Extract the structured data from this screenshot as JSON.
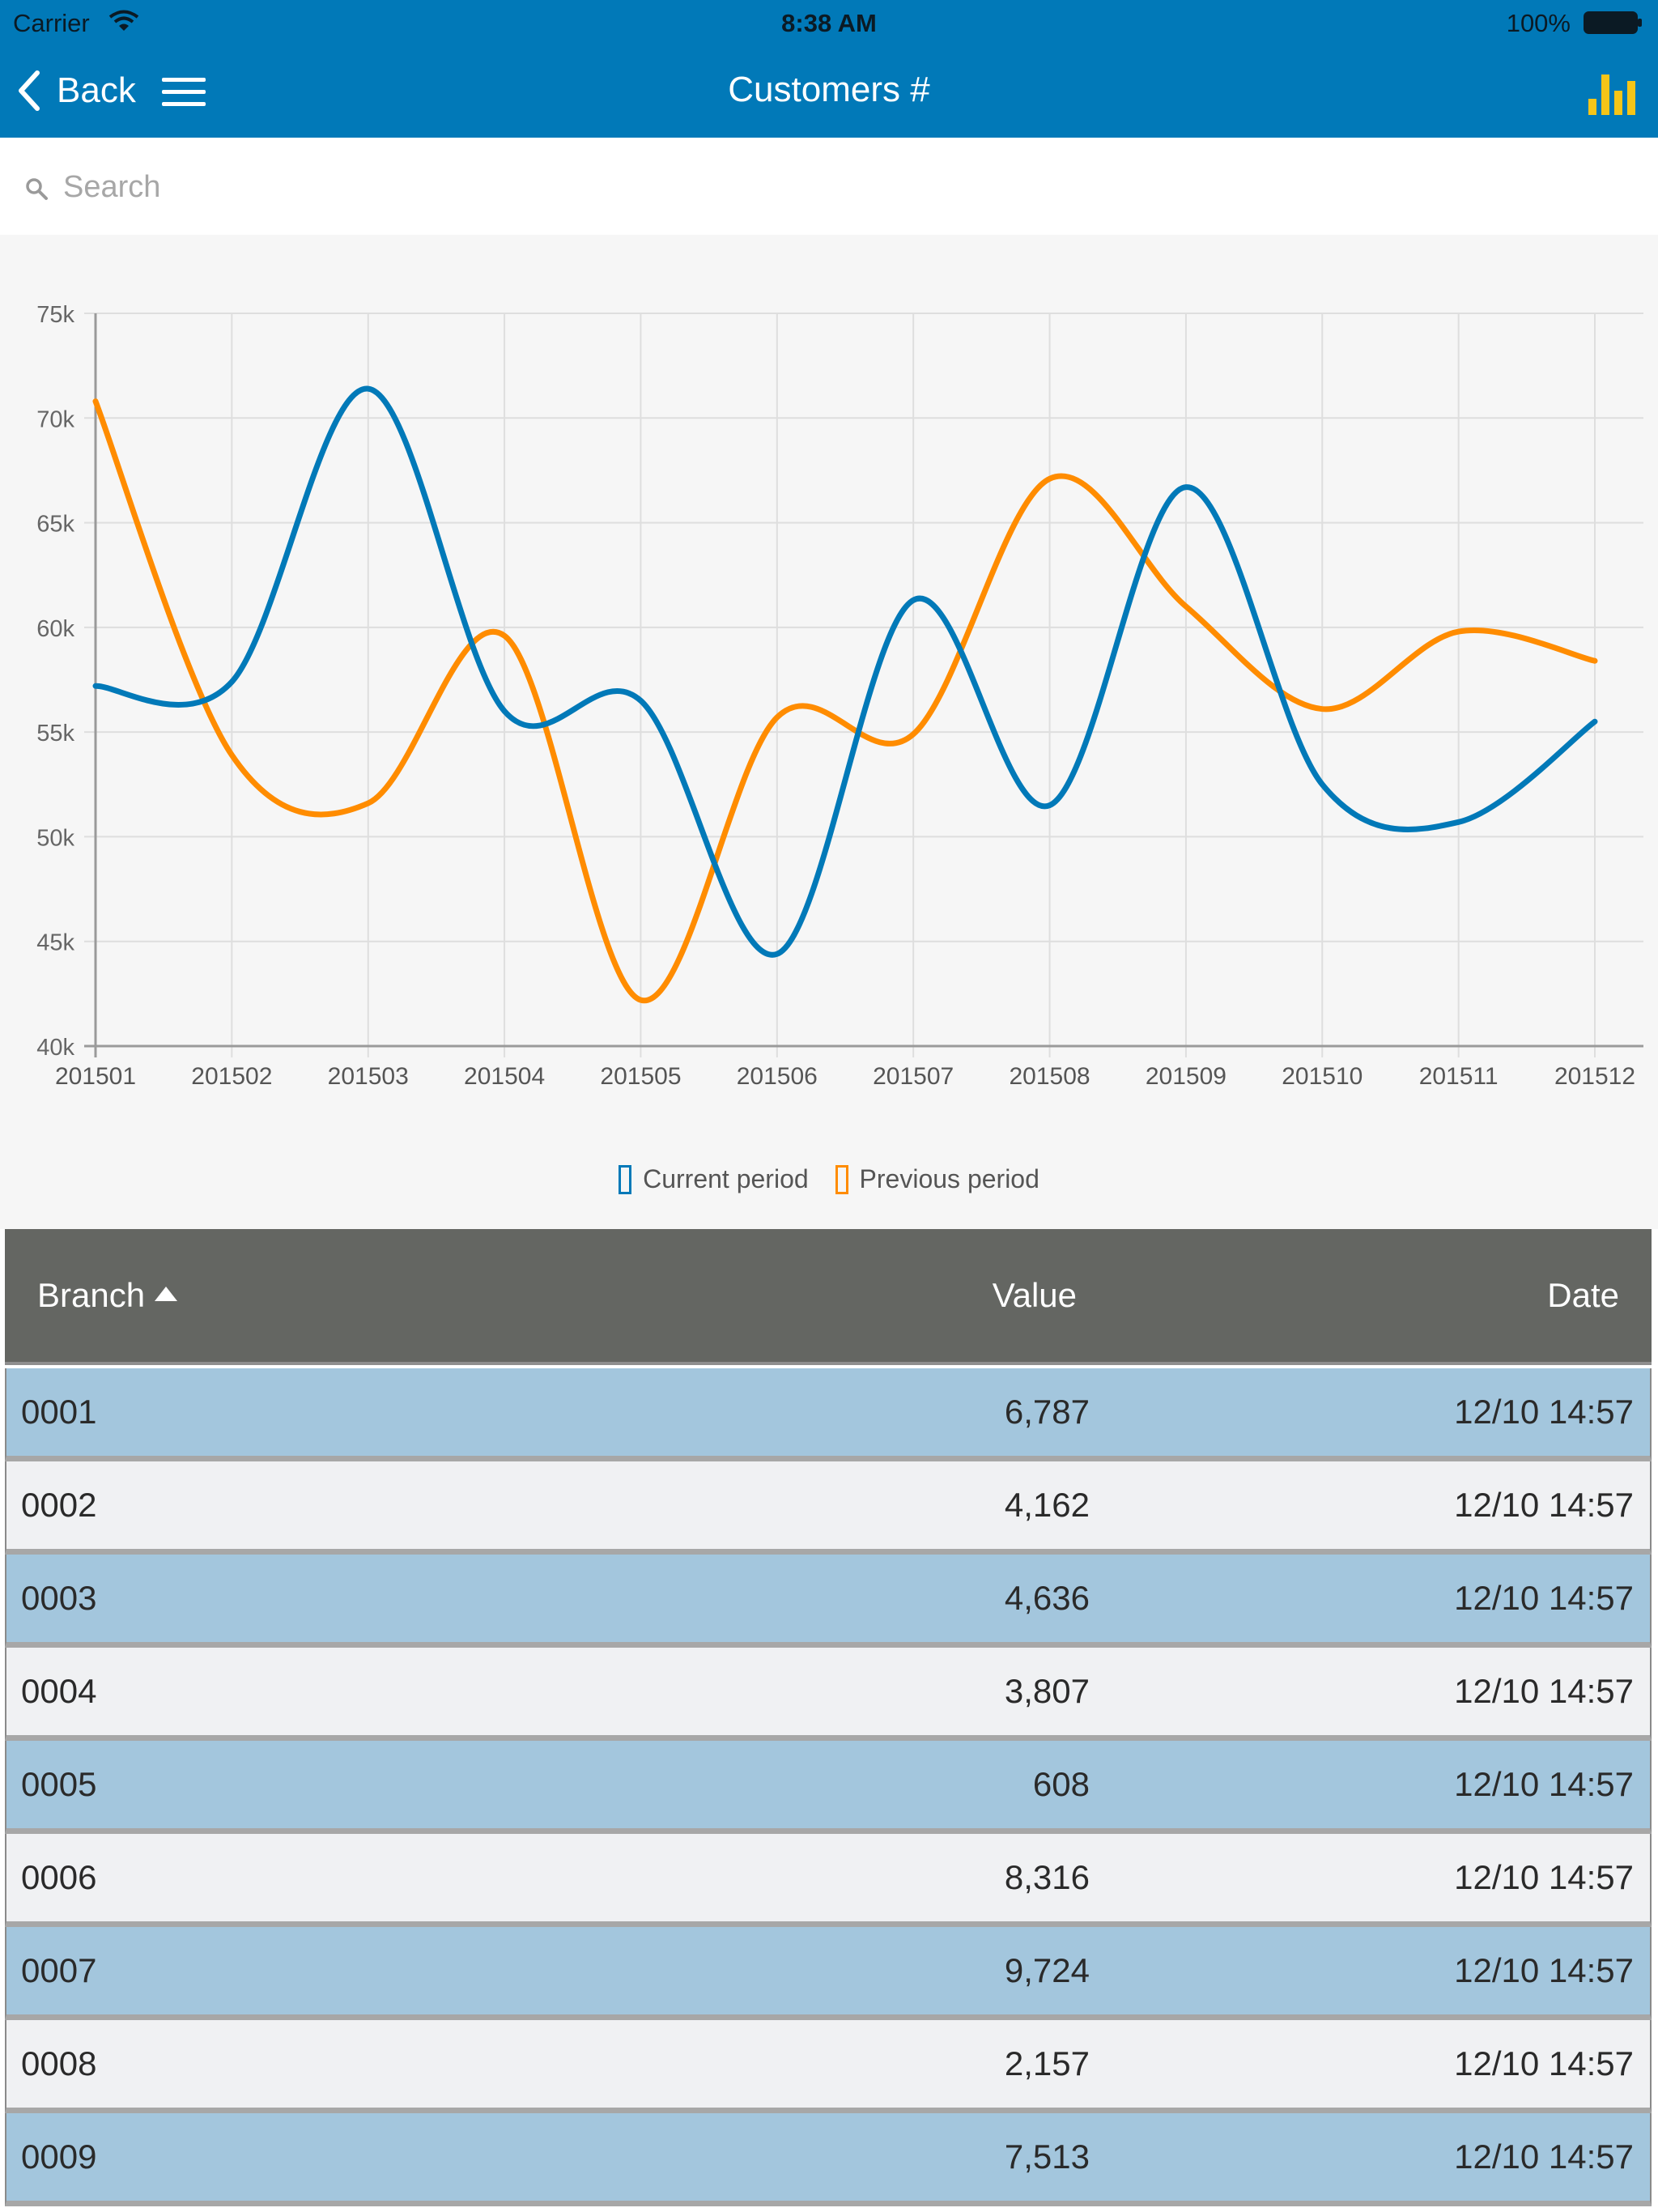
{
  "status_bar": {
    "carrier": "Carrier",
    "time": "8:38 AM",
    "battery": "100%"
  },
  "nav": {
    "back_label": "Back",
    "title": "Customers #"
  },
  "search": {
    "placeholder": "Search"
  },
  "colors": {
    "nav_bg": "#0179b8",
    "current": "#0179b8",
    "previous": "#ff8c00",
    "chart_icon": "#f5c518",
    "row_highlight": "#a3c6dd",
    "table_header": "#646662"
  },
  "icons": {
    "back": "chevron-left-icon",
    "menu": "hamburger-menu-icon",
    "chart": "bar-chart-icon",
    "search": "search-icon"
  },
  "chart_data": {
    "type": "line",
    "x": [
      "201501",
      "201502",
      "201503",
      "201504",
      "201505",
      "201506",
      "201507",
      "201508",
      "201509",
      "201510",
      "201511",
      "201512"
    ],
    "y_ticks": [
      "40k",
      "45k",
      "50k",
      "55k",
      "60k",
      "65k",
      "70k",
      "75k"
    ],
    "ylim": [
      40000,
      75000
    ],
    "grid": true,
    "legend_position": "bottom-center",
    "series": [
      {
        "name": "Current period",
        "color": "#0179b8",
        "values": [
          57200,
          57400,
          71400,
          56000,
          56500,
          44400,
          61300,
          51500,
          66700,
          52500,
          50700,
          55500
        ]
      },
      {
        "name": "Previous period",
        "color": "#ff8c00",
        "values": [
          70800,
          53900,
          51600,
          59600,
          42200,
          55700,
          54900,
          67100,
          61000,
          56100,
          59800,
          58400
        ]
      }
    ]
  },
  "table": {
    "headers": {
      "branch": "Branch",
      "value": "Value",
      "date": "Date"
    },
    "sort": "branch-ascending",
    "rows": [
      {
        "branch": "0001",
        "value": "6,787",
        "date": "12/10 14:57"
      },
      {
        "branch": "0002",
        "value": "4,162",
        "date": "12/10 14:57"
      },
      {
        "branch": "0003",
        "value": "4,636",
        "date": "12/10 14:57"
      },
      {
        "branch": "0004",
        "value": "3,807",
        "date": "12/10 14:57"
      },
      {
        "branch": "0005",
        "value": "608",
        "date": "12/10 14:57"
      },
      {
        "branch": "0006",
        "value": "8,316",
        "date": "12/10 14:57"
      },
      {
        "branch": "0007",
        "value": "9,724",
        "date": "12/10 14:57"
      },
      {
        "branch": "0008",
        "value": "2,157",
        "date": "12/10 14:57"
      },
      {
        "branch": "0009",
        "value": "7,513",
        "date": "12/10 14:57"
      }
    ]
  }
}
